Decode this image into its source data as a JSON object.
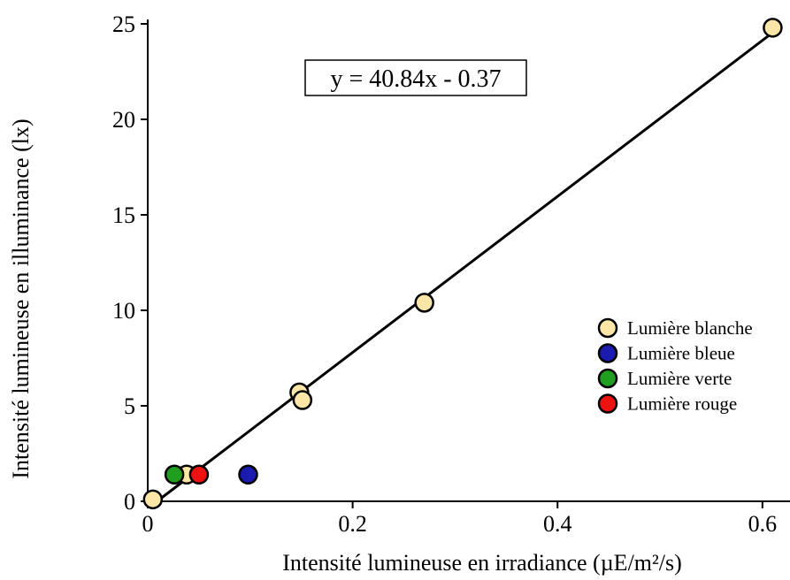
{
  "chart_data": {
    "type": "scatter",
    "xlabel": "Intensité lumineuse en irradiance (µE/m²/s)",
    "ylabel": "Intensité lumineuse en illuminance (lx)",
    "xlim": [
      0,
      0.62
    ],
    "ylim": [
      0,
      25
    ],
    "xticks": [
      0,
      0.2,
      0.4,
      0.6
    ],
    "xtick_labels": [
      "0",
      "0.2",
      "0.4",
      "0.6"
    ],
    "yticks": [
      0,
      5,
      10,
      15,
      20,
      25
    ],
    "ytick_labels": [
      "0",
      "5",
      "10",
      "15",
      "20",
      "25"
    ],
    "grid": false,
    "legend_position": "right",
    "series": [
      {
        "name": "Lumière blanche",
        "color": "#fbe6a8",
        "points": [
          [
            0.005,
            0.1
          ],
          [
            0.038,
            1.4
          ],
          [
            0.148,
            5.7
          ],
          [
            0.151,
            5.3
          ],
          [
            0.27,
            10.4
          ],
          [
            0.61,
            24.8
          ]
        ]
      },
      {
        "name": "Lumière bleue",
        "color": "#1b1bb0",
        "points": [
          [
            0.098,
            1.4
          ]
        ]
      },
      {
        "name": "Lumière verte",
        "color": "#1f9e1f",
        "points": [
          [
            0.026,
            1.4
          ]
        ]
      },
      {
        "name": "Lumière rouge",
        "color": "#ee1111",
        "points": [
          [
            0.05,
            1.4
          ]
        ]
      }
    ],
    "fit_line": {
      "slope": 40.84,
      "intercept": -0.37,
      "x_range": [
        0,
        0.615
      ]
    },
    "annotation": "y = 40.84x - 0.37"
  }
}
